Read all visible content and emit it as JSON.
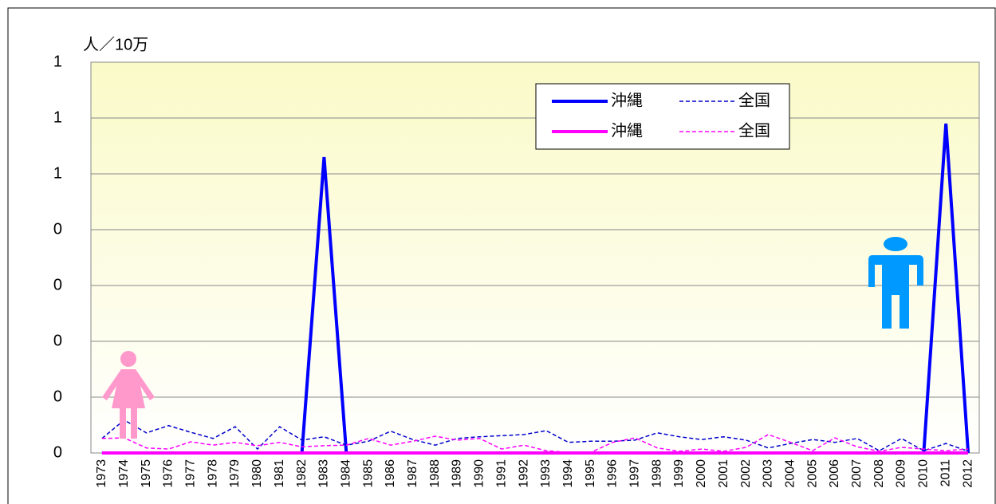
{
  "chart_data": {
    "type": "line",
    "y_label": "人／10万",
    "categories": [
      "1973",
      "1974",
      "1975",
      "1976",
      "1977",
      "1978",
      "1979",
      "1980",
      "1981",
      "1982",
      "1983",
      "1984",
      "1985",
      "1986",
      "1987",
      "1988",
      "1989",
      "1990",
      "1991",
      "1992",
      "1993",
      "1994",
      "1995",
      "1996",
      "1997",
      "1998",
      "1999",
      "2000",
      "2001",
      "2002",
      "2003",
      "2004",
      "2005",
      "2006",
      "2007",
      "2008",
      "2009",
      "2010",
      "2011",
      "2012"
    ],
    "series": [
      {
        "name": "沖縄",
        "color": "#0000ff",
        "dash": false,
        "values": [
          0,
          0,
          0,
          0,
          0,
          0,
          0,
          0,
          0,
          0,
          0.53,
          0,
          0,
          0,
          0,
          0,
          0,
          0,
          0,
          0,
          0,
          0,
          0,
          0,
          0,
          0,
          0,
          0,
          0,
          0,
          0,
          0,
          0,
          0,
          0,
          0,
          0,
          0,
          0.59,
          0
        ]
      },
      {
        "name": "全国",
        "color": "#0000cc",
        "dash": true,
        "values": [
          0.026,
          0.059,
          0.036,
          0.049,
          0.037,
          0.026,
          0.047,
          0.007,
          0.047,
          0.023,
          0.029,
          0.014,
          0.021,
          0.039,
          0.024,
          0.014,
          0.026,
          0.029,
          0.031,
          0.033,
          0.04,
          0.019,
          0.021,
          0.021,
          0.023,
          0.036,
          0.029,
          0.024,
          0.029,
          0.023,
          0.009,
          0.017,
          0.024,
          0.019,
          0.026,
          0.004,
          0.026,
          0.004,
          0.017,
          0.003
        ]
      },
      {
        "name": "沖縄",
        "color": "#ff00ff",
        "dash": false,
        "values": [
          0,
          0,
          0,
          0,
          0,
          0,
          0,
          0,
          0,
          0,
          0,
          0,
          0,
          0,
          0,
          0,
          0,
          0,
          0,
          0,
          0,
          0,
          0,
          0,
          0,
          0,
          0,
          0,
          0,
          0,
          0,
          0,
          0,
          0,
          0,
          0,
          0,
          0,
          0,
          0
        ]
      },
      {
        "name": "全国",
        "color": "#ff00ff",
        "dash": true,
        "values": [
          0.026,
          0.027,
          0.009,
          0.007,
          0.02,
          0.014,
          0.019,
          0.013,
          0.019,
          0.011,
          0.013,
          0.014,
          0.026,
          0.014,
          0.021,
          0.03,
          0.023,
          0.026,
          0.007,
          0.014,
          0.004,
          0.001,
          0.001,
          0.019,
          0.027,
          0.009,
          0.003,
          0.007,
          0.003,
          0.01,
          0.033,
          0.019,
          0.004,
          0.027,
          0.011,
          0.003,
          0.01,
          0.007,
          0.004,
          0.007
        ]
      }
    ],
    "ylim": [
      0,
      0.7
    ],
    "yticks": [
      {
        "value": 0,
        "label": "0"
      },
      {
        "value": 0.1,
        "label": "0"
      },
      {
        "value": 0.2,
        "label": "0"
      },
      {
        "value": 0.3,
        "label": "0"
      },
      {
        "value": 0.4,
        "label": "0"
      },
      {
        "value": 0.5,
        "label": "1"
      },
      {
        "value": 0.6,
        "label": "1"
      },
      {
        "value": 0.7,
        "label": "1"
      }
    ],
    "grid": true
  }
}
